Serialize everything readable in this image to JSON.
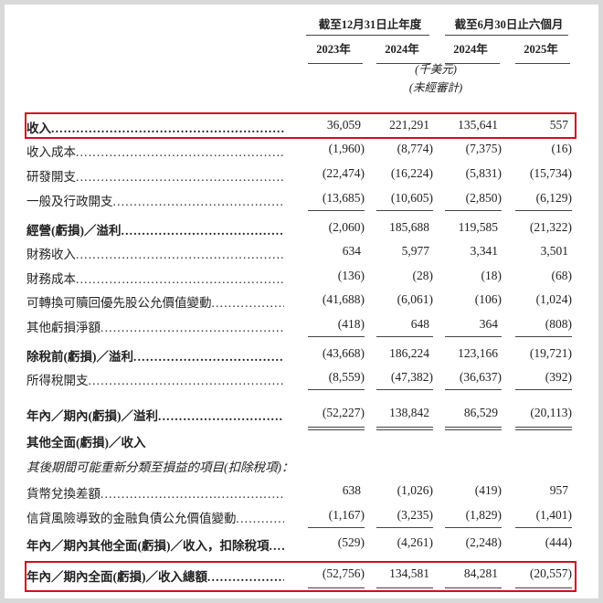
{
  "header": {
    "group1": "截至12月31日止年度",
    "group2": "截至6月30日止六個月",
    "years": [
      "2023年",
      "2024年",
      "2024年",
      "2025年"
    ],
    "unit": "(千美元)",
    "audit_note": "(未經審計)"
  },
  "highlight_color": "#d0101a",
  "rows": [
    {
      "label": "收入",
      "values": [
        "36,059",
        "221,291",
        "135,641",
        "557"
      ],
      "bold": true,
      "highlight": true
    },
    {
      "label": "收入成本",
      "values": [
        "(1,960)",
        "(8,774)",
        "(7,375)",
        "(16)"
      ]
    },
    {
      "label": "研發開支",
      "values": [
        "(22,474)",
        "(16,224)",
        "(5,831)",
        "(15,734)"
      ]
    },
    {
      "label": "一般及行政開支",
      "values": [
        "(13,685)",
        "(10,605)",
        "(2,850)",
        "(6,129)"
      ],
      "rule": "single"
    },
    {
      "label": "經營(虧損)／溢利",
      "values": [
        "(2,060)",
        "185,688",
        "119,585",
        "(21,322)"
      ],
      "bold": true
    },
    {
      "label": "財務收入",
      "values": [
        "634",
        "5,977",
        "3,341",
        "3,501"
      ]
    },
    {
      "label": "財務成本",
      "values": [
        "(136)",
        "(28)",
        "(18)",
        "(68)"
      ]
    },
    {
      "label": "可轉換可贖回優先股公允價值變動",
      "values": [
        "(41,688)",
        "(6,061)",
        "(106)",
        "(1,024)"
      ]
    },
    {
      "label": "其他虧損淨額",
      "values": [
        "(418)",
        "648",
        "364",
        "(808)"
      ],
      "rule": "single"
    },
    {
      "label": "除稅前(虧損)／溢利",
      "values": [
        "(43,668)",
        "186,224",
        "123,166",
        "(19,721)"
      ],
      "bold": true
    },
    {
      "label": "所得稅開支",
      "values": [
        "(8,559)",
        "(47,382)",
        "(36,637)",
        "(392)"
      ],
      "rule": "single"
    },
    {
      "label": "年內／期內(虧損)／溢利",
      "values": [
        "(52,227)",
        "138,842",
        "86,529",
        "(20,113)"
      ],
      "bold": true,
      "rule": "double"
    },
    {
      "label": "其他全面(虧損)／收入",
      "values": [],
      "bold": true,
      "nodots": true
    },
    {
      "label": "其後期間可能重新分類至損益的項目(扣除稅項)：",
      "values": [],
      "italic": true,
      "nodots": true
    },
    {
      "label": "貨幣兌換差額",
      "values": [
        "638",
        "(1,026)",
        "(419)",
        "957"
      ]
    },
    {
      "label": "信貸風險導致的金融負債公允價值變動",
      "values": [
        "(1,167)",
        "(3,235)",
        "(1,829)",
        "(1,401)"
      ],
      "rule": "single"
    },
    {
      "label": "年內／期內其他全面(虧損)／收入，扣除稅項",
      "values": [
        "(529)",
        "(4,261)",
        "(2,248)",
        "(444)"
      ],
      "bold": true
    },
    {
      "label": "年內／期內全面(虧損)／收入總額",
      "values": [
        "(52,756)",
        "134,581",
        "84,281",
        "(20,557)"
      ],
      "bold": true,
      "rule": "double",
      "highlight": true
    }
  ]
}
